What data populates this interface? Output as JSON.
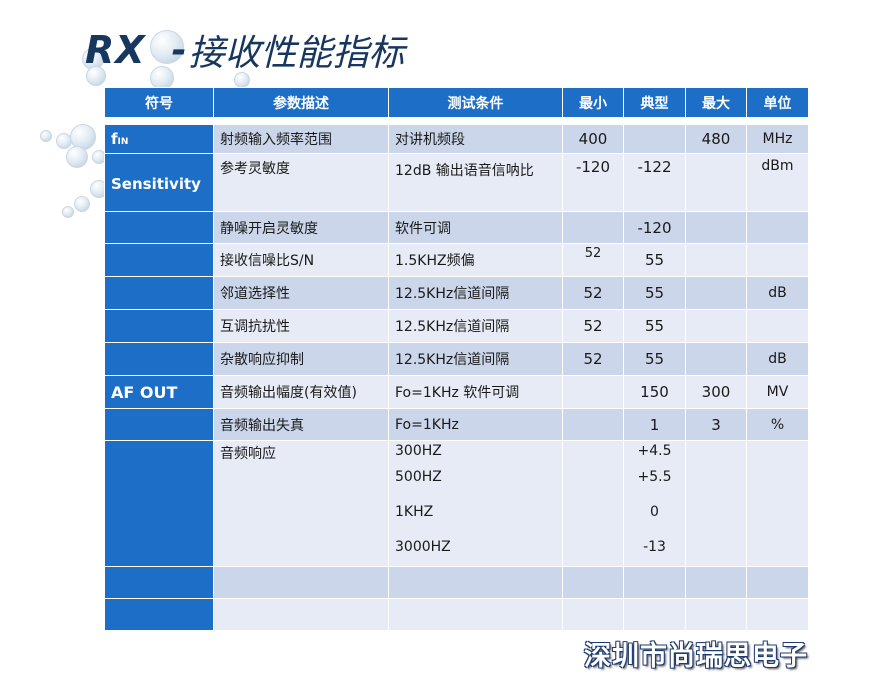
{
  "title": {
    "rx": "RX",
    "dash": "-",
    "cn": "接收性能指标"
  },
  "table": {
    "headers": [
      "符号",
      "参数描述",
      "测试条件",
      "最小",
      "典型",
      "最大",
      "单位"
    ],
    "rows": [
      {
        "symbol": "f",
        "symbol_sub": "IN",
        "param": "射频输入频率范围",
        "cond": "对讲机频段",
        "min": "400",
        "typ": "",
        "max": "480",
        "unit": "MHz"
      },
      {
        "symbol": "Sensitivity",
        "param": "参考灵敏度",
        "cond": "12dB 输出语音信呐比",
        "min": "-120",
        "typ": "-122",
        "max": "",
        "unit": "dBm"
      },
      {
        "symbol": "",
        "param": "静噪开启灵敏度",
        "cond": "软件可调",
        "min": "",
        "typ": "-120",
        "max": "",
        "unit": ""
      },
      {
        "symbol": "",
        "param": "接收信噪比S/N",
        "cond": "1.5KHZ频偏",
        "min": "52",
        "typ": "55",
        "max": "",
        "unit": ""
      },
      {
        "symbol": "",
        "param": "邻道选择性",
        "cond": "12.5KHz信道间隔",
        "min": "52",
        "typ": "55",
        "max": "",
        "unit": "dB"
      },
      {
        "symbol": "",
        "param": "互调抗扰性",
        "cond": "12.5KHz信道间隔",
        "min": "52",
        "typ": "55",
        "max": "",
        "unit": ""
      },
      {
        "symbol": "",
        "param": "杂散响应抑制",
        "cond": "12.5KHz信道间隔",
        "min": "52",
        "typ": "55",
        "max": "",
        "unit": "dB"
      },
      {
        "symbol": "AF OUT",
        "param": "音频输出幅度(有效值)",
        "cond": "Fo=1KHz 软件可调",
        "min": "",
        "typ": "150",
        "max": "300",
        "unit": "MV"
      },
      {
        "symbol": "",
        "param": "音频输出失真",
        "cond": "Fo=1KHz",
        "min": "",
        "typ": "1",
        "max": "3",
        "unit": "%"
      },
      {
        "symbol": "",
        "param": "音频响应",
        "conds": [
          "300HZ",
          "500HZ",
          "1KHZ",
          "3000HZ"
        ],
        "typs": [
          "+4.5",
          "+5.5",
          "0",
          "-13"
        ]
      }
    ]
  },
  "footer": {
    "company": "深圳市尚瑞思电子"
  }
}
